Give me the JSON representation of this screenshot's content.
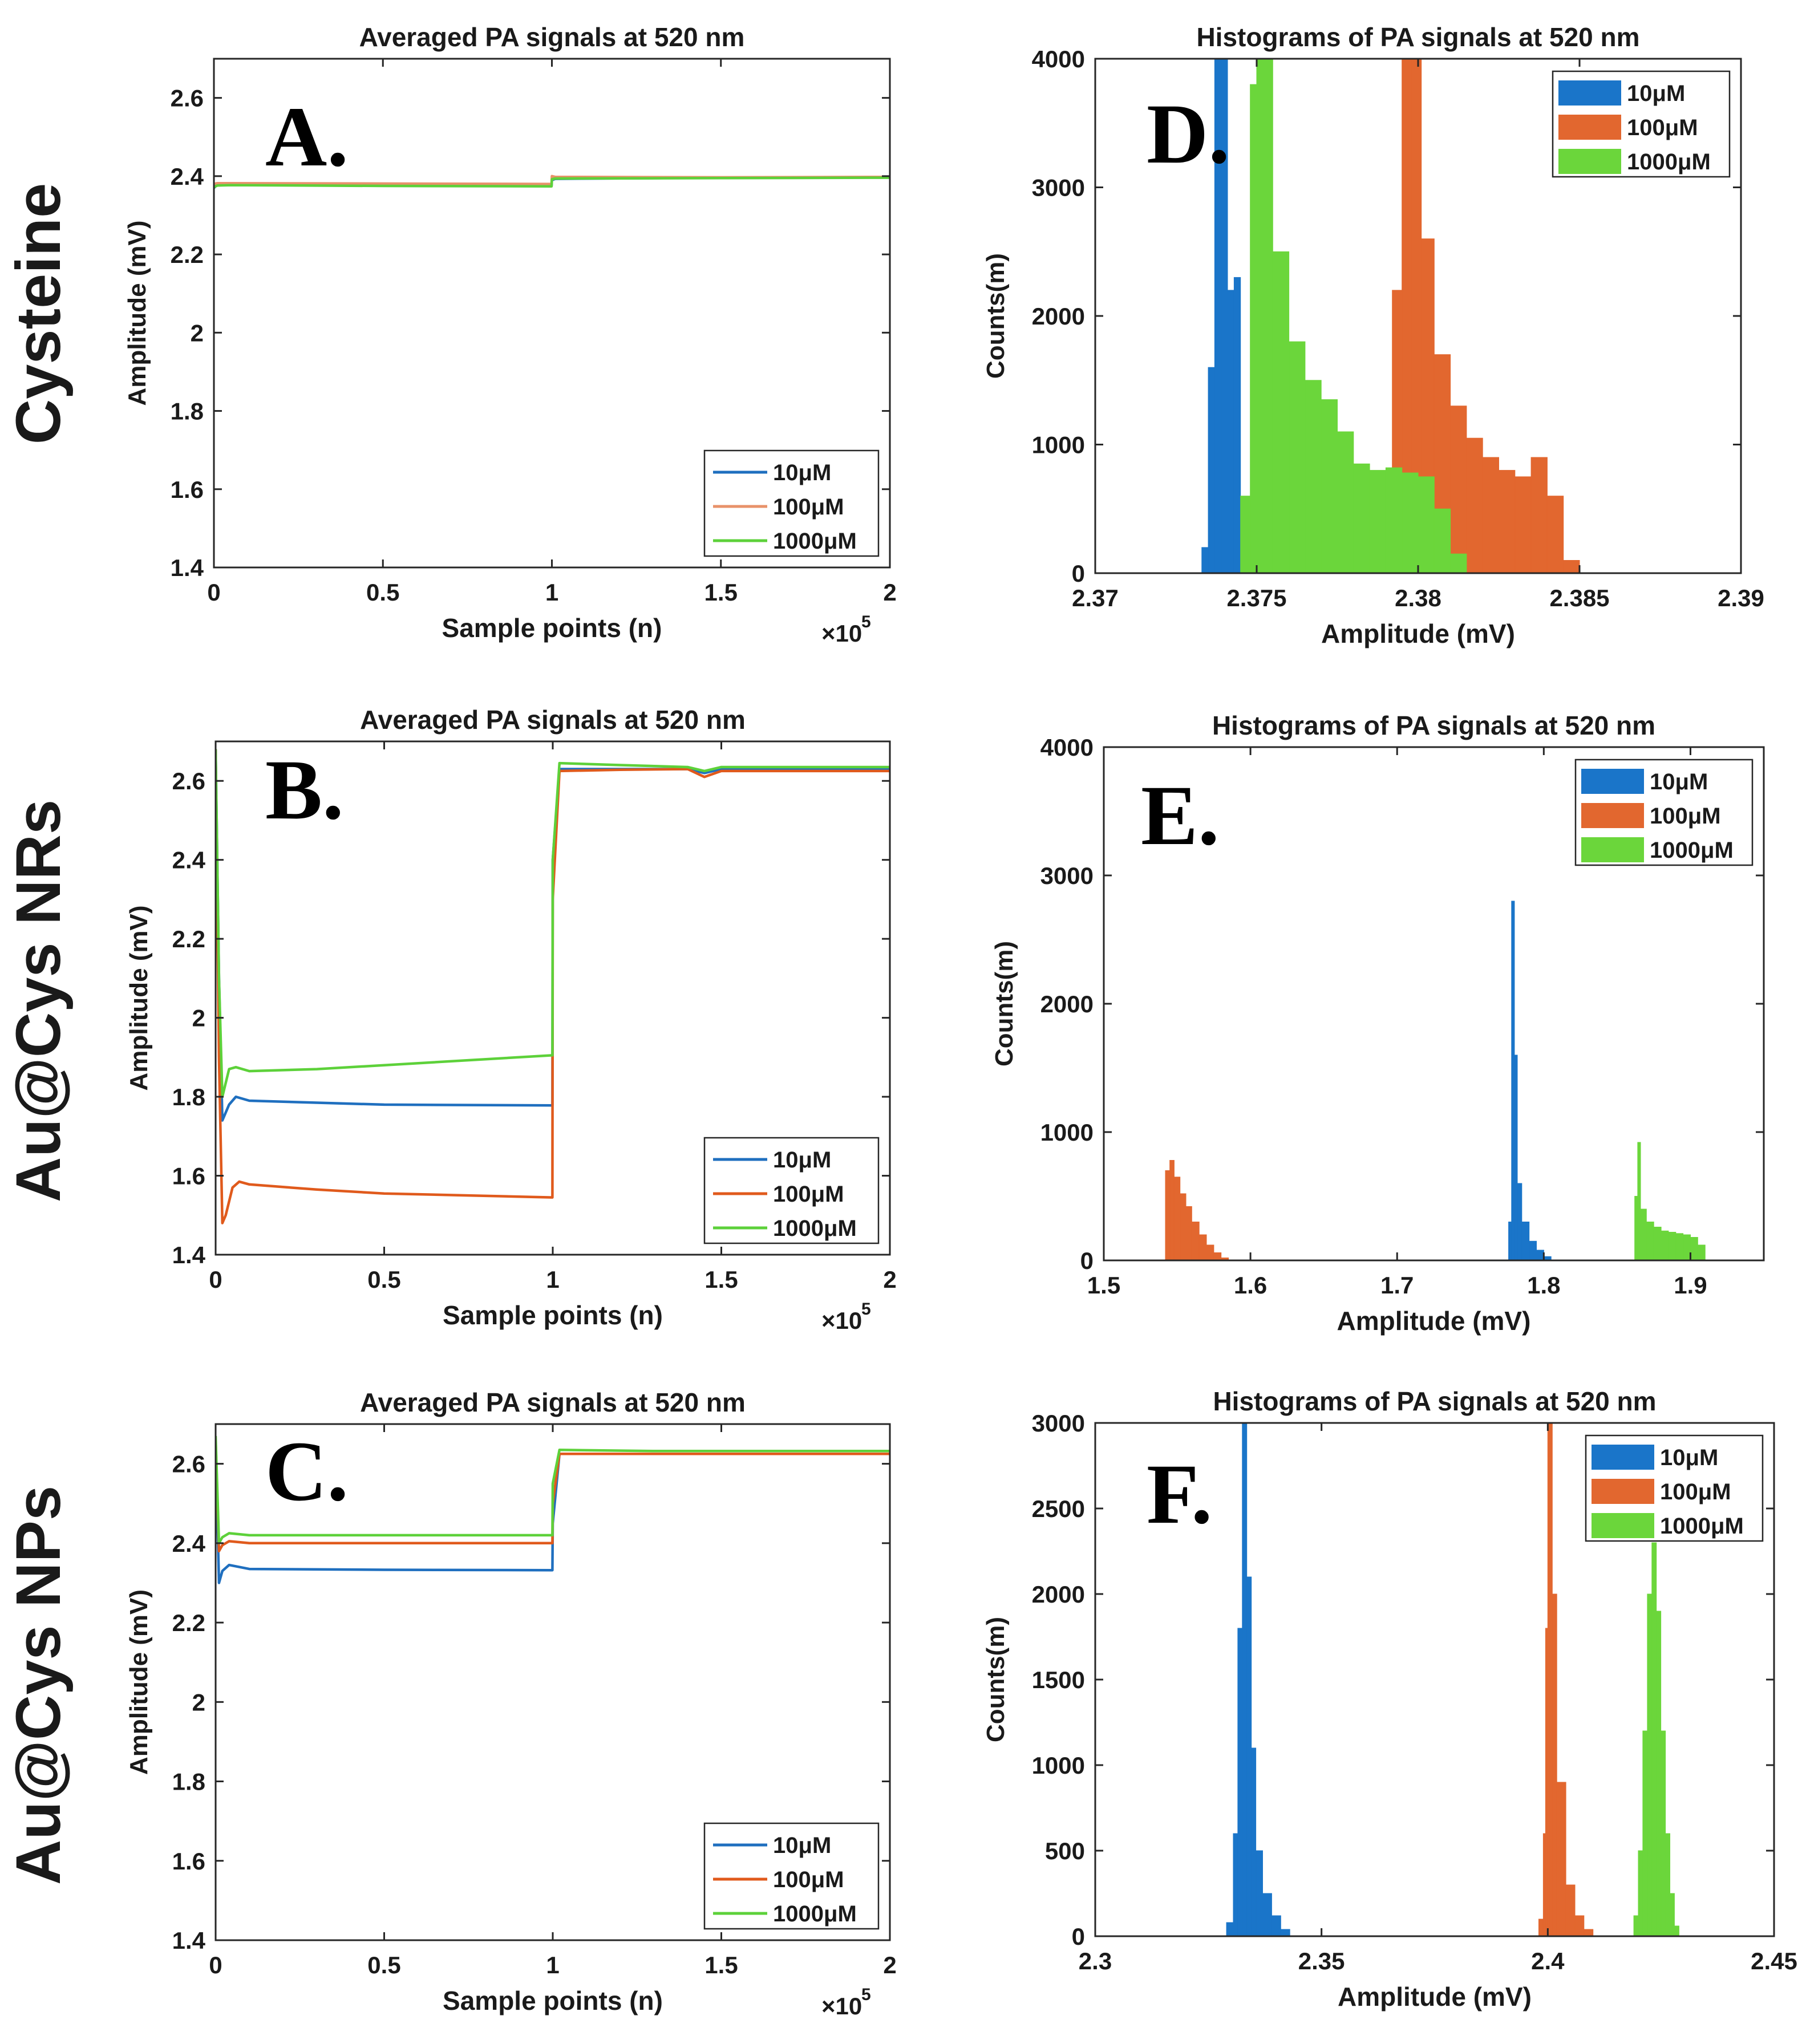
{
  "chart_data": [
    {
      "id": "A",
      "type": "line",
      "row_label": "Cysteine",
      "panel_letter": "A.",
      "title": "Averaged PA signals at 520 nm",
      "xlabel": "Sample points (n)",
      "ylabel": "Amplitude (mV)",
      "x_exponent": "5",
      "xlim": [
        0,
        2
      ],
      "ylim": [
        1.4,
        2.7
      ],
      "xticks": [
        0,
        0.5,
        1,
        1.5,
        2
      ],
      "xtick_labels": [
        "0",
        "0.5",
        "1",
        "1.5",
        "2"
      ],
      "yticks": [
        1.4,
        1.6,
        1.8,
        2,
        2.2,
        2.4,
        2.6
      ],
      "ytick_labels": [
        "1.4",
        "1.6",
        "1.8",
        "2",
        "2.2",
        "2.4",
        "2.6"
      ],
      "legend": {
        "position": "bottom-right",
        "labels": [
          "10μM",
          "100μM",
          "1000μM"
        ]
      },
      "series": [
        {
          "name": "10μM",
          "color": "#1f6fbf",
          "x": [
            0,
            0.01,
            0.05,
            0.5,
            0.999,
            1.0,
            1.01,
            1.5,
            2.0
          ],
          "y": [
            2.37,
            2.378,
            2.378,
            2.377,
            2.376,
            2.39,
            2.393,
            2.396,
            2.397
          ]
        },
        {
          "name": "100μM",
          "color": "#e8926a",
          "x": [
            0,
            0.01,
            0.05,
            0.5,
            0.999,
            1.0,
            1.01,
            1.5,
            2.0
          ],
          "y": [
            2.38,
            2.382,
            2.382,
            2.381,
            2.38,
            2.4,
            2.398,
            2.397,
            2.398
          ]
        },
        {
          "name": "1000μM",
          "color": "#5dd13a",
          "x": [
            0,
            0.01,
            0.05,
            0.5,
            0.999,
            1.0,
            1.01,
            1.5,
            2.0
          ],
          "y": [
            2.372,
            2.376,
            2.377,
            2.375,
            2.374,
            2.392,
            2.394,
            2.395,
            2.396
          ]
        }
      ]
    },
    {
      "id": "B",
      "type": "line",
      "row_label": "Au@Cys NRs",
      "panel_letter": "B.",
      "title": "Averaged PA signals at 520 nm",
      "xlabel": "Sample points (n)",
      "ylabel": "Amplitude (mV)",
      "x_exponent": "5",
      "xlim": [
        0,
        2
      ],
      "ylim": [
        1.4,
        2.7
      ],
      "xticks": [
        0,
        0.5,
        1,
        1.5,
        2
      ],
      "xtick_labels": [
        "0",
        "0.5",
        "1",
        "1.5",
        "2"
      ],
      "yticks": [
        1.4,
        1.6,
        1.8,
        2,
        2.2,
        2.4,
        2.6
      ],
      "ytick_labels": [
        "1.4",
        "1.6",
        "1.8",
        "2",
        "2.2",
        "2.4",
        "2.6"
      ],
      "legend": {
        "position": "bottom-right",
        "labels": [
          "10μM",
          "100μM",
          "1000μM"
        ]
      },
      "series": [
        {
          "name": "10μM",
          "color": "#1f6fbf",
          "x": [
            0,
            0.01,
            0.02,
            0.04,
            0.06,
            0.1,
            0.3,
            0.5,
            0.999,
            1.0,
            1.02,
            1.2,
            1.4,
            1.45,
            1.5,
            2.0
          ],
          "y": [
            2.68,
            2.1,
            1.74,
            1.78,
            1.8,
            1.79,
            1.785,
            1.78,
            1.778,
            2.4,
            2.63,
            2.63,
            2.63,
            2.62,
            2.63,
            2.63
          ]
        },
        {
          "name": "100μM",
          "color": "#e05a1c",
          "x": [
            0,
            0.01,
            0.02,
            0.03,
            0.05,
            0.07,
            0.1,
            0.3,
            0.5,
            0.999,
            1.0,
            1.02,
            1.2,
            1.4,
            1.45,
            1.5,
            2.0
          ],
          "y": [
            2.68,
            1.9,
            1.48,
            1.5,
            1.57,
            1.585,
            1.578,
            1.565,
            1.555,
            1.545,
            2.3,
            2.625,
            2.628,
            2.63,
            2.61,
            2.625,
            2.625
          ]
        },
        {
          "name": "1000μM",
          "color": "#5dd13a",
          "x": [
            0,
            0.01,
            0.02,
            0.04,
            0.06,
            0.1,
            0.3,
            0.5,
            0.999,
            1.0,
            1.02,
            1.2,
            1.4,
            1.45,
            1.5,
            2.0
          ],
          "y": [
            2.68,
            2.1,
            1.8,
            1.87,
            1.875,
            1.865,
            1.87,
            1.88,
            1.905,
            2.4,
            2.645,
            2.64,
            2.635,
            2.625,
            2.635,
            2.635
          ]
        }
      ]
    },
    {
      "id": "C",
      "type": "line",
      "row_label": "Au@Cys NPs",
      "panel_letter": "C.",
      "title": "Averaged PA signals at 520 nm",
      "xlabel": "Sample points (n)",
      "ylabel": "Amplitude (mV)",
      "x_exponent": "5",
      "xlim": [
        0,
        2
      ],
      "ylim": [
        1.4,
        2.7
      ],
      "xticks": [
        0,
        0.5,
        1,
        1.5,
        2
      ],
      "xtick_labels": [
        "0",
        "0.5",
        "1",
        "1.5",
        "2"
      ],
      "yticks": [
        1.4,
        1.6,
        1.8,
        2,
        2.2,
        2.4,
        2.6
      ],
      "ytick_labels": [
        "1.4",
        "1.6",
        "1.8",
        "2",
        "2.2",
        "2.4",
        "2.6"
      ],
      "legend": {
        "position": "bottom-right",
        "labels": [
          "10μM",
          "100μM",
          "1000μM"
        ]
      },
      "series": [
        {
          "name": "10μM",
          "color": "#1f6fbf",
          "x": [
            0,
            0.01,
            0.02,
            0.04,
            0.1,
            0.5,
            0.999,
            1.0,
            1.02,
            1.3,
            1.5,
            2.0
          ],
          "y": [
            2.65,
            2.3,
            2.33,
            2.345,
            2.335,
            2.333,
            2.332,
            2.45,
            2.625,
            2.625,
            2.625,
            2.625
          ]
        },
        {
          "name": "100μM",
          "color": "#e05a1c",
          "x": [
            0,
            0.01,
            0.02,
            0.04,
            0.1,
            0.5,
            0.999,
            1.0,
            1.02,
            1.3,
            1.5,
            2.0
          ],
          "y": [
            2.66,
            2.38,
            2.395,
            2.405,
            2.4,
            2.4,
            2.4,
            2.5,
            2.625,
            2.625,
            2.625,
            2.625
          ]
        },
        {
          "name": "1000μM",
          "color": "#5dd13a",
          "x": [
            0,
            0.01,
            0.02,
            0.04,
            0.1,
            0.5,
            0.999,
            1.0,
            1.02,
            1.3,
            1.5,
            2.0
          ],
          "y": [
            2.67,
            2.4,
            2.415,
            2.425,
            2.42,
            2.42,
            2.42,
            2.55,
            2.635,
            2.632,
            2.632,
            2.632
          ]
        }
      ]
    },
    {
      "id": "D",
      "type": "bar",
      "panel_letter": "D.",
      "title": "Histograms of PA signals at 520 nm",
      "xlabel": "Amplitude (mV)",
      "ylabel": "Counts(m)",
      "xlim": [
        2.37,
        2.39
      ],
      "ylim": [
        0,
        4000
      ],
      "xticks": [
        2.37,
        2.375,
        2.38,
        2.385,
        2.39
      ],
      "xtick_labels": [
        "2.37",
        "2.375",
        "2.38",
        "2.385",
        "2.39"
      ],
      "yticks": [
        0,
        1000,
        2000,
        3000,
        4000
      ],
      "ytick_labels": [
        "0",
        "1000",
        "2000",
        "3000",
        "4000"
      ],
      "legend": {
        "position": "top-right",
        "labels": [
          "10μM",
          "100μM",
          "1000μM"
        ]
      },
      "series": [
        {
          "name": "10μM",
          "color": "#1a75c9",
          "x": [
            2.3733,
            2.3735,
            2.3737,
            2.3739,
            2.3741,
            2.3743
          ],
          "counts": [
            200,
            1600,
            4000,
            4000,
            2200,
            2300
          ]
        },
        {
          "name": "100μM",
          "color": "#e2672f",
          "x": [
            2.3792,
            2.3795,
            2.3798,
            2.3801,
            2.3805,
            2.381,
            2.3815,
            2.382,
            2.3825,
            2.383,
            2.3835,
            2.384,
            2.3845
          ],
          "counts": [
            2200,
            4000,
            4000,
            2600,
            1700,
            1300,
            1050,
            900,
            800,
            750,
            900,
            600,
            100
          ]
        },
        {
          "name": "1000μM",
          "color": "#6bd63b",
          "x": [
            2.3745,
            2.3748,
            2.375,
            2.3755,
            2.376,
            2.3765,
            2.377,
            2.3775,
            2.378,
            2.3785,
            2.379,
            2.3795,
            2.38,
            2.3805,
            2.381
          ],
          "counts": [
            600,
            3800,
            4000,
            2500,
            1800,
            1500,
            1350,
            1100,
            850,
            800,
            820,
            780,
            750,
            500,
            150
          ]
        }
      ]
    },
    {
      "id": "E",
      "type": "bar",
      "panel_letter": "E.",
      "title": "Histograms of PA signals at 520 nm",
      "xlabel": "Amplitude (mV)",
      "ylabel": "Counts(m)",
      "xlim": [
        1.5,
        1.95
      ],
      "ylim": [
        0,
        4000
      ],
      "xticks": [
        1.5,
        1.6,
        1.7,
        1.8,
        1.9
      ],
      "xtick_labels": [
        "1.5",
        "1.6",
        "1.7",
        "1.8",
        "1.9"
      ],
      "yticks": [
        0,
        1000,
        2000,
        3000,
        4000
      ],
      "ytick_labels": [
        "0",
        "1000",
        "2000",
        "3000",
        "4000"
      ],
      "legend": {
        "position": "top-right",
        "labels": [
          "10μM",
          "100μM",
          "1000μM"
        ]
      },
      "series": [
        {
          "name": "10μM",
          "color": "#1a75c9",
          "x": [
            1.776,
            1.778,
            1.78,
            1.782,
            1.785,
            1.79,
            1.795,
            1.8
          ],
          "counts": [
            300,
            2800,
            1600,
            600,
            300,
            150,
            80,
            30
          ]
        },
        {
          "name": "100μM",
          "color": "#e2672f",
          "x": [
            1.542,
            1.545,
            1.548,
            1.552,
            1.556,
            1.56,
            1.565,
            1.57,
            1.575,
            1.58
          ],
          "counts": [
            700,
            780,
            650,
            520,
            420,
            300,
            200,
            120,
            60,
            20
          ]
        },
        {
          "name": "1000μM",
          "color": "#6bd63b",
          "x": [
            1.862,
            1.864,
            1.866,
            1.87,
            1.875,
            1.88,
            1.885,
            1.89,
            1.895,
            1.9,
            1.905
          ],
          "counts": [
            500,
            920,
            400,
            300,
            260,
            230,
            220,
            210,
            200,
            180,
            120
          ]
        }
      ]
    },
    {
      "id": "F",
      "type": "bar",
      "panel_letter": "F.",
      "title": "Histograms of PA signals at 520 nm",
      "xlabel": "Amplitude (mV)",
      "ylabel": "Counts(m)",
      "xlim": [
        2.3,
        2.45
      ],
      "ylim": [
        0,
        3000
      ],
      "xticks": [
        2.3,
        2.35,
        2.4,
        2.45
      ],
      "xtick_labels": [
        "2.3",
        "2.35",
        "2.4",
        "2.45"
      ],
      "yticks": [
        0,
        500,
        1000,
        1500,
        2000,
        2500,
        3000
      ],
      "ytick_labels": [
        "0",
        "500",
        "1000",
        "1500",
        "2000",
        "2500",
        "3000"
      ],
      "legend": {
        "position": "top-right",
        "labels": [
          "10μM",
          "100μM",
          "1000μM"
        ]
      },
      "series": [
        {
          "name": "10μM",
          "color": "#1a75c9",
          "x": [
            2.329,
            2.3305,
            2.3315,
            2.3325,
            2.3335,
            2.3345,
            2.3355,
            2.337,
            2.339,
            2.341
          ],
          "counts": [
            80,
            600,
            1800,
            3000,
            2100,
            1100,
            500,
            250,
            120,
            40
          ]
        },
        {
          "name": "100μM",
          "color": "#e2672f",
          "x": [
            2.398,
            2.399,
            2.3995,
            2.4,
            2.4005,
            2.401,
            2.402,
            2.404,
            2.406,
            2.408
          ],
          "counts": [
            100,
            600,
            1800,
            3000,
            3000,
            2000,
            900,
            300,
            120,
            40
          ]
        },
        {
          "name": "1000μM",
          "color": "#6bd63b",
          "x": [
            2.419,
            2.42,
            2.421,
            2.422,
            2.423,
            2.424,
            2.425,
            2.426,
            2.427,
            2.428
          ],
          "counts": [
            120,
            500,
            1200,
            2000,
            2300,
            1900,
            1200,
            600,
            250,
            60
          ]
        }
      ]
    }
  ]
}
